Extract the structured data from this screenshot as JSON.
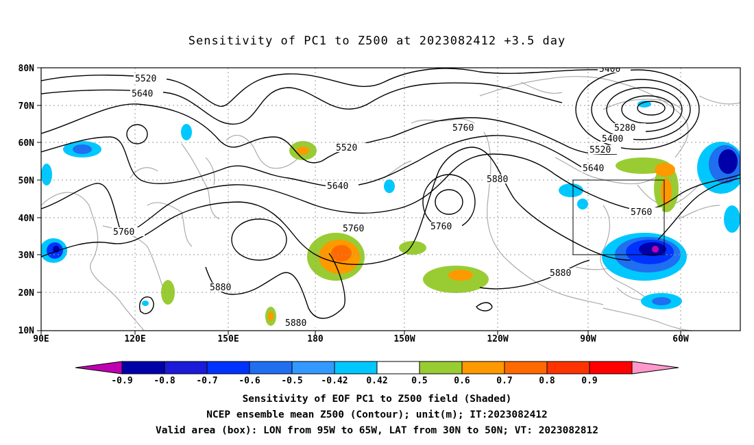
{
  "title": "Sensitivity of PC1 to Z500 at 2023082412 +3.5 day",
  "lat_labels": [
    "80N",
    "70N",
    "60N",
    "50N",
    "40N",
    "30N",
    "20N",
    "10N"
  ],
  "lon_labels": [
    "90E",
    "120E",
    "150E",
    "180",
    "150W",
    "120W",
    "90W",
    "60W"
  ],
  "colorbar": {
    "labels": [
      "-0.9",
      "-0.8",
      "-0.7",
      "-0.6",
      "-0.5",
      "-0.42",
      "0.42",
      "0.5",
      "0.6",
      "0.7",
      "0.8",
      "0.9"
    ],
    "colors": [
      "#c000b0",
      "#0000a8",
      "#1a1ad8",
      "#0033ff",
      "#1f6ff0",
      "#3399ff",
      "#00c8ff",
      "#ffffff",
      "#99cc33",
      "#ff9900",
      "#ff6a00",
      "#ff3300",
      "#ff0000",
      "#ff99cc"
    ]
  },
  "contour_labels": [
    "5400",
    "5520",
    "5640",
    "5280",
    "5400",
    "5520",
    "5640",
    "5760",
    "5520",
    "5640",
    "5760",
    "5880",
    "5760",
    "5760",
    "5880",
    "5880",
    "5880",
    "5760"
  ],
  "footer": {
    "line1": "Sensitivity of EOF PC1 to Z500 field (Shaded)",
    "line2": "NCEP ensemble mean Z500 (Contour); unit(m); IT:2023082412",
    "line3": "Valid area (box): LON from 95W to 65W, LAT from 30N to 50N; VT: 2023082812"
  }
}
